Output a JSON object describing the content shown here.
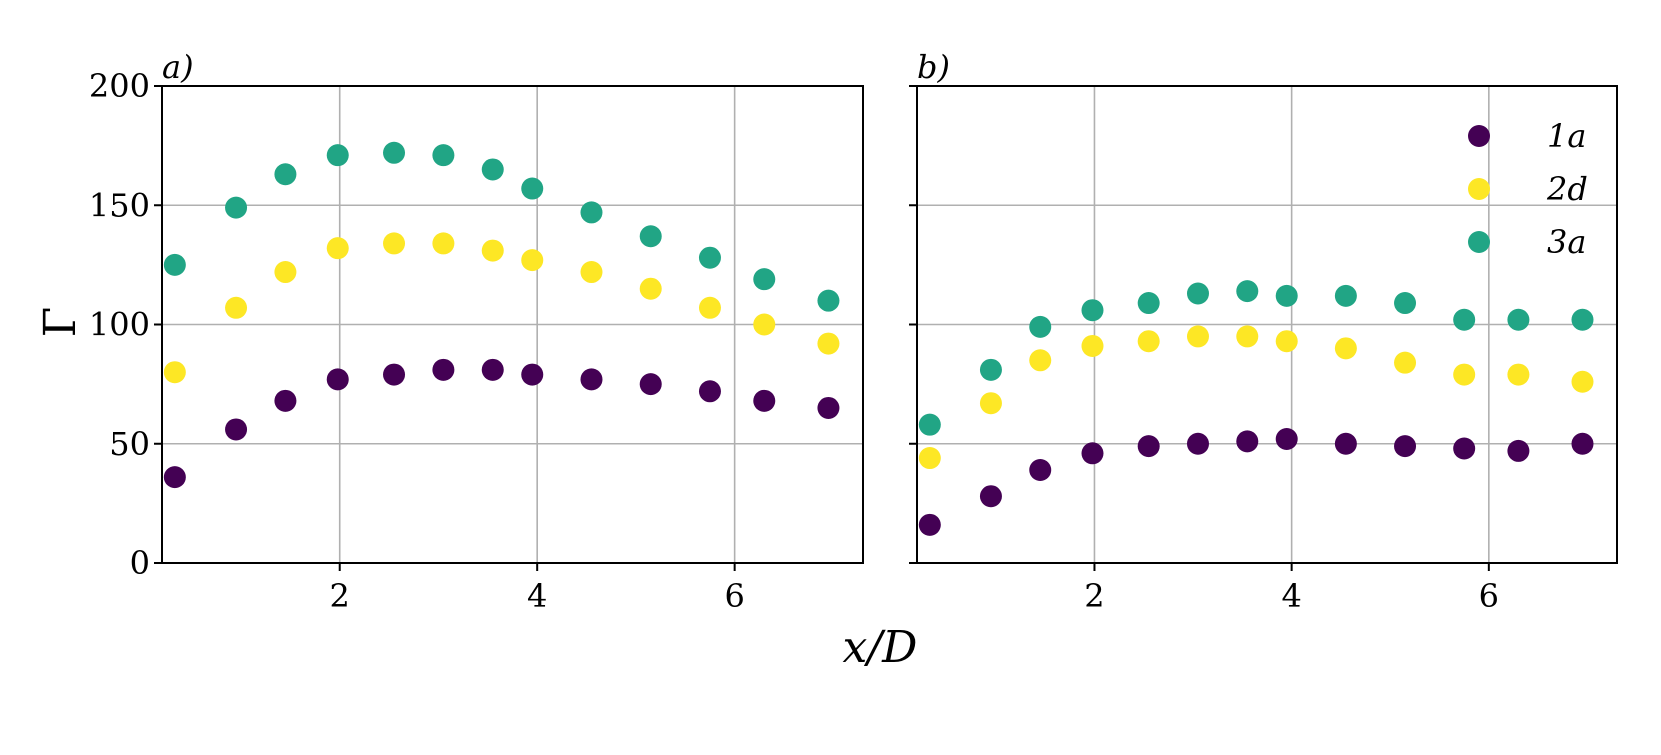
{
  "chart_data": [
    {
      "type": "scatter",
      "panel_label": "a)",
      "ylabel": "Γ",
      "xlabel": "x/D",
      "xlim": [
        0.2,
        7.3
      ],
      "ylim": [
        0,
        200
      ],
      "xticks": [
        2,
        4,
        6
      ],
      "yticks": [
        0,
        50,
        100,
        150,
        200
      ],
      "grid": true,
      "x": [
        0.33,
        0.95,
        1.45,
        1.98,
        2.55,
        3.05,
        3.55,
        3.95,
        4.55,
        5.15,
        5.75,
        6.3,
        6.95
      ],
      "series": [
        {
          "name": "1a",
          "color": "#440154",
          "values": [
            36,
            56,
            68,
            77,
            79,
            81,
            81,
            79,
            77,
            75,
            72,
            68,
            65
          ]
        },
        {
          "name": "2d",
          "color": "#fde725",
          "values": [
            80,
            107,
            122,
            132,
            134,
            134,
            131,
            127,
            122,
            115,
            107,
            100,
            92
          ]
        },
        {
          "name": "3a",
          "color": "#21a585",
          "values": [
            125,
            149,
            163,
            171,
            172,
            171,
            165,
            157,
            147,
            137,
            128,
            119,
            110
          ]
        }
      ]
    },
    {
      "type": "scatter",
      "panel_label": "b)",
      "xlabel": "x/D",
      "xlim": [
        0.2,
        7.3
      ],
      "ylim": [
        0,
        200
      ],
      "xticks": [
        2,
        4,
        6
      ],
      "yticks": [
        0,
        50,
        100,
        150,
        200
      ],
      "grid": true,
      "legend": "top-right",
      "x": [
        0.33,
        0.95,
        1.45,
        1.98,
        2.55,
        3.05,
        3.55,
        3.95,
        4.55,
        5.15,
        5.75,
        6.3,
        6.95
      ],
      "series": [
        {
          "name": "1a",
          "color": "#440154",
          "values": [
            16,
            28,
            39,
            46,
            49,
            50,
            51,
            52,
            50,
            49,
            48,
            47,
            50
          ]
        },
        {
          "name": "2d",
          "color": "#fde725",
          "values": [
            44,
            67,
            85,
            91,
            93,
            95,
            95,
            93,
            90,
            84,
            79,
            79,
            76
          ]
        },
        {
          "name": "3a",
          "color": "#21a585",
          "values": [
            58,
            81,
            99,
            106,
            109,
            113,
            114,
            112,
            112,
            109,
            102,
            102,
            102
          ]
        }
      ]
    }
  ]
}
